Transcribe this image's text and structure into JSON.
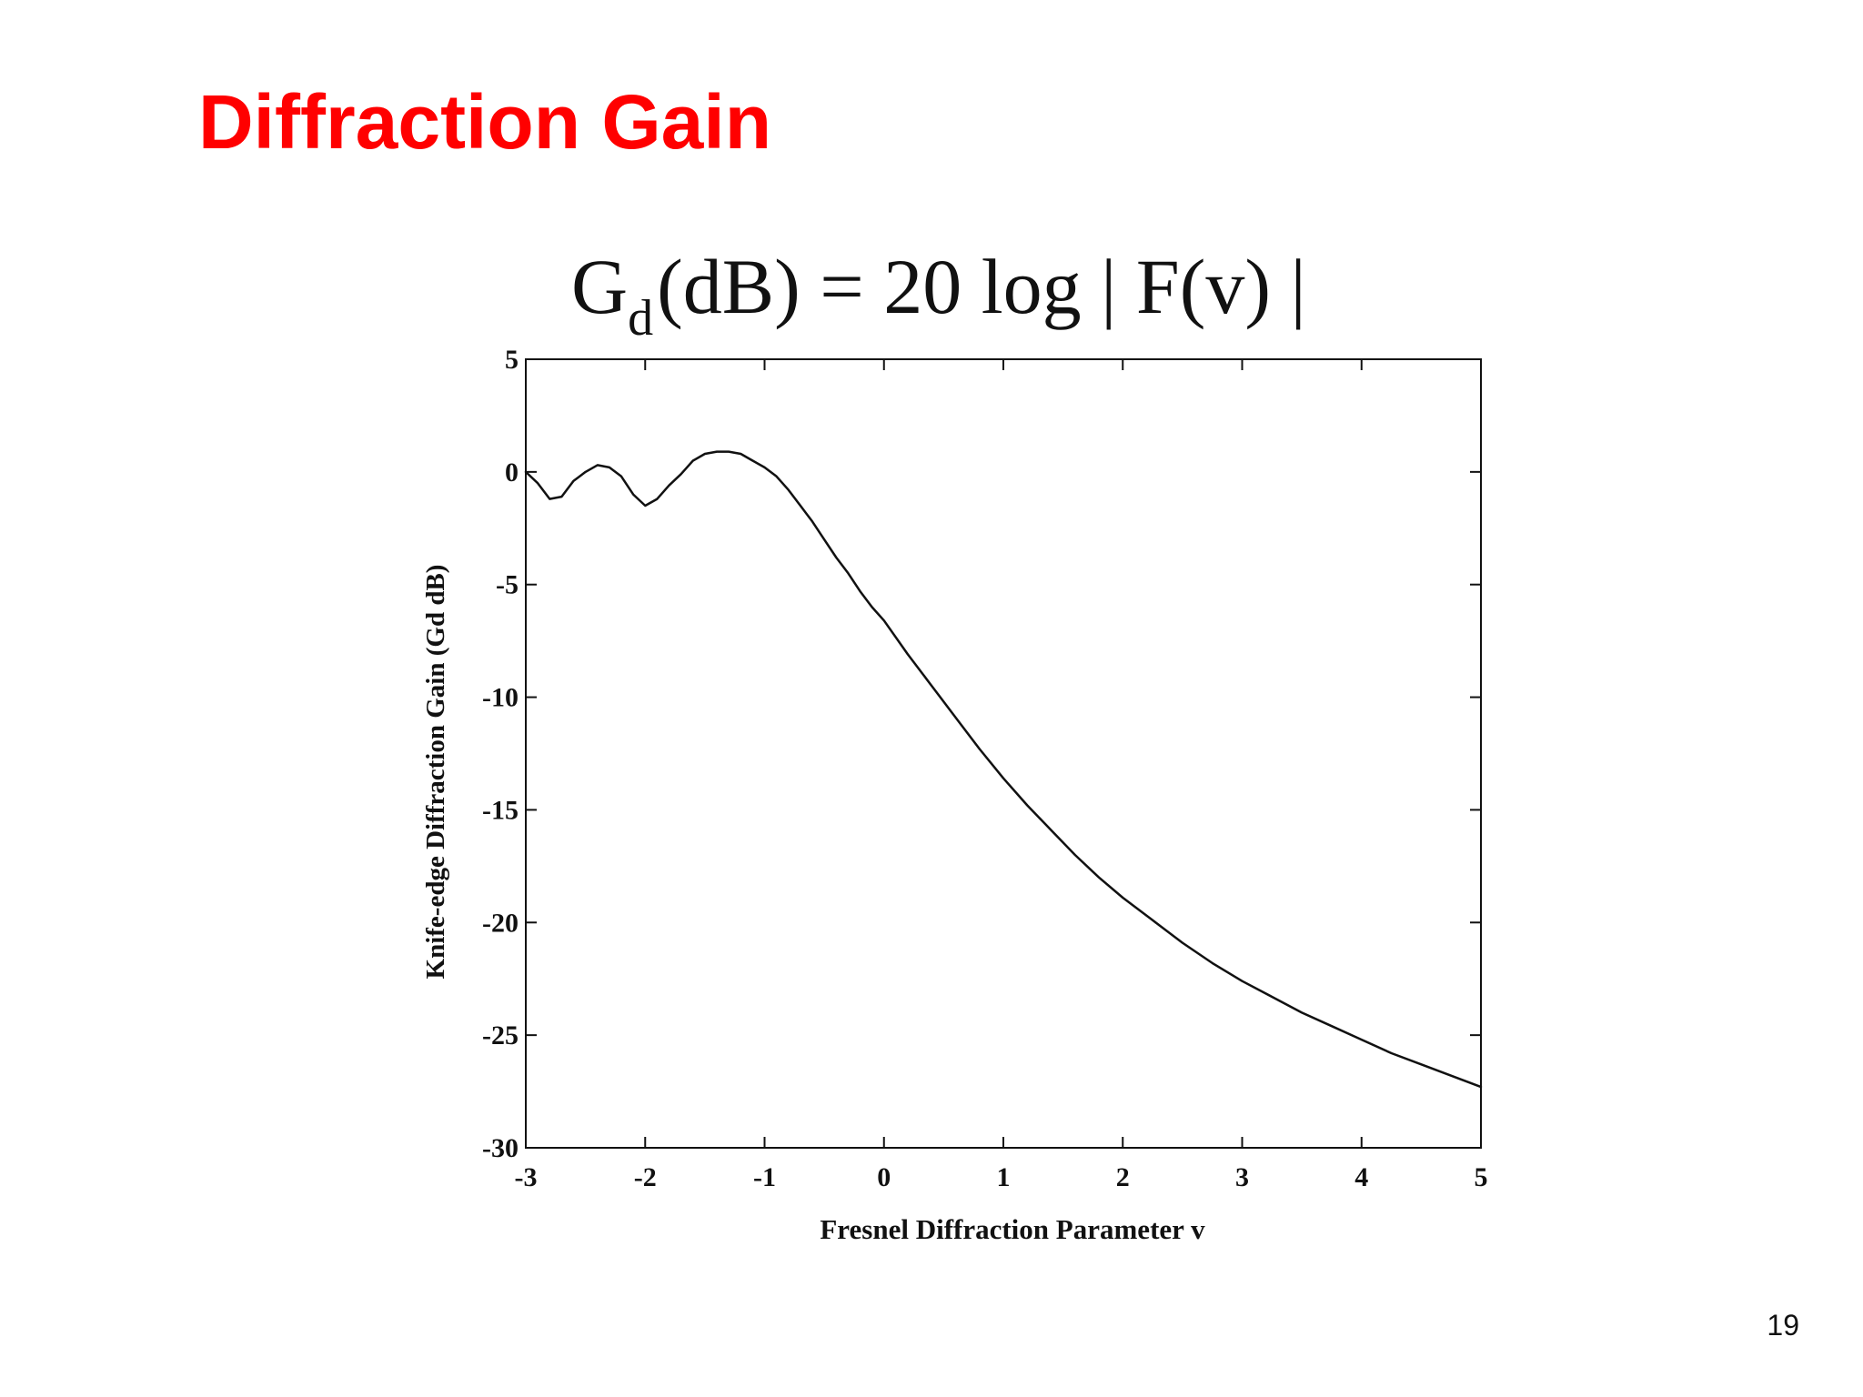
{
  "slide": {
    "title": "Diffraction Gain",
    "page_number": "19"
  },
  "formula": {
    "lhs_main": "G",
    "lhs_sub": "d",
    "rhs": "(dB) = 20 log | F(v) |"
  },
  "chart_data": {
    "type": "line",
    "xlabel": "Fresnel Diffraction Parameter v",
    "ylabel": "Knife-edge Diffraction Gain (Gd dB)",
    "xlim": [
      -3,
      5
    ],
    "ylim": [
      -30,
      5
    ],
    "x_ticks": [
      -3,
      -2,
      -1,
      0,
      1,
      2,
      3,
      4,
      5
    ],
    "y_ticks": [
      5,
      0,
      -5,
      -10,
      -15,
      -20,
      -25,
      -30
    ],
    "grid": false,
    "series": [
      {
        "x": [
          -3.0,
          -2.9,
          -2.8,
          -2.7,
          -2.6,
          -2.5,
          -2.4,
          -2.3,
          -2.2,
          -2.1,
          -2.0,
          -1.9,
          -1.8,
          -1.7,
          -1.6,
          -1.5,
          -1.4,
          -1.3,
          -1.2,
          -1.1,
          -1.0,
          -0.9,
          -0.8,
          -0.7,
          -0.6,
          -0.5,
          -0.4,
          -0.3,
          -0.2,
          -0.1,
          0.0,
          0.2,
          0.4,
          0.6,
          0.8,
          1.0,
          1.2,
          1.4,
          1.6,
          1.8,
          2.0,
          2.25,
          2.5,
          2.75,
          3.0,
          3.25,
          3.5,
          3.75,
          4.0,
          4.25,
          4.5,
          4.75,
          5.0
        ],
        "y": [
          0.0,
          -0.5,
          -1.2,
          -1.1,
          -0.4,
          0.0,
          0.3,
          0.2,
          -0.2,
          -1.0,
          -1.5,
          -1.2,
          -0.6,
          -0.1,
          0.5,
          0.8,
          0.9,
          0.9,
          0.8,
          0.5,
          0.2,
          -0.2,
          -0.8,
          -1.5,
          -2.2,
          -3.0,
          -3.8,
          -4.5,
          -5.3,
          -6.0,
          -6.6,
          -8.1,
          -9.5,
          -10.9,
          -12.3,
          -13.6,
          -14.8,
          -15.9,
          -17.0,
          -18.0,
          -18.9,
          -19.9,
          -20.9,
          -21.8,
          -22.6,
          -23.3,
          -24.0,
          -24.6,
          -25.2,
          -25.8,
          -26.3,
          -26.8,
          -27.3
        ]
      }
    ]
  }
}
